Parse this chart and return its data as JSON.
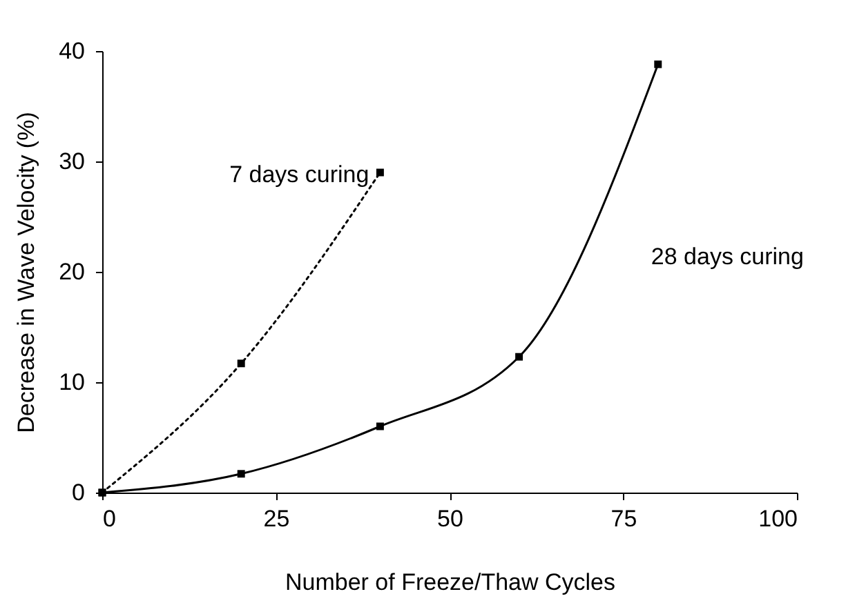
{
  "chart_data": {
    "type": "line",
    "xlabel": "Number of Freeze/Thaw Cycles",
    "ylabel": "Decrease in Wave Velocity (%)",
    "xlim": [
      0,
      100
    ],
    "xticks": [
      0,
      25,
      50,
      75,
      100
    ],
    "ylim": [
      0,
      40
    ],
    "yticks": [
      0,
      10,
      20,
      30,
      40
    ],
    "grid": false,
    "legend": false,
    "marker": "square",
    "series": [
      {
        "name": "7 days curing",
        "color": "#000000",
        "line_style": "dotted",
        "x": [
          0,
          20,
          40
        ],
        "values": [
          0,
          11.7,
          29
        ]
      },
      {
        "name": "28 days curing",
        "color": "#000000",
        "line_style": "solid",
        "x": [
          0,
          20,
          40,
          60,
          80
        ],
        "values": [
          0,
          1.7,
          6,
          12.3,
          38.8
        ]
      }
    ]
  }
}
